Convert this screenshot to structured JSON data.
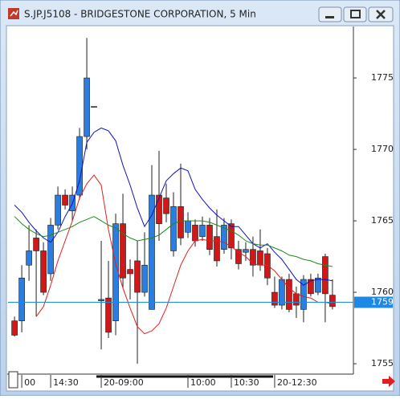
{
  "chart_data": {
    "type": "candlestick",
    "title": "S.JP.J5108 - BRIDGESTONE CORPORATION, 5 Min",
    "open": [
      1758,
      1758,
      1761.9,
      1763.8,
      1762.9,
      1761.3,
      1764.7,
      1766.8,
      1765.7,
      1766.8,
      1770.9,
      1773,
      1759.4,
      1759.6,
      1758,
      1764.8,
      1761.6,
      1762.2,
      1760,
      1758.8,
      1766.8,
      1766.6,
      1762.9,
      1766,
      1764.2,
      1764.7,
      1763.9,
      1764.7,
      1763.9,
      1763,
      1764.8,
      1763,
      1762.8,
      1763,
      1762.9,
      1762.7,
      1760,
      1759.1,
      1760.9,
      1759.9,
      1758.8,
      1760.9,
      1760,
      1762.5,
      1759.8
    ],
    "high": [
      1758.3,
      1761.9,
      1764.7,
      1764.4,
      1763.5,
      1765.2,
      1767.4,
      1767.2,
      1767.4,
      1771.5,
      1777.8,
      1773,
      1763.6,
      1762.2,
      1765.5,
      1766.9,
      1762.3,
      1763.6,
      1764.2,
      1768.9,
      1769.9,
      1767.6,
      1767,
      1769,
      1765.6,
      1765.1,
      1765.3,
      1765.2,
      1765.8,
      1765.2,
      1765.1,
      1763.6,
      1763.5,
      1763.9,
      1764.4,
      1763.1,
      1761.1,
      1761.1,
      1761.3,
      1760.4,
      1761.2,
      1761.3,
      1761.3,
      1762.7,
      1760.9
    ],
    "low": [
      1756.9,
      1757.2,
      1760.8,
      1758.3,
      1759.8,
      1760.8,
      1764.4,
      1765.8,
      1765,
      1766.5,
      1770,
      1773,
      1756,
      1756.8,
      1757,
      1760.3,
      1759.5,
      1755,
      1759.7,
      1758.8,
      1763.6,
      1764.9,
      1762.5,
      1763.3,
      1763.8,
      1763.2,
      1763.6,
      1762.6,
      1761.8,
      1762.7,
      1762.3,
      1761.6,
      1762.2,
      1761.1,
      1761.5,
      1760.5,
      1758.9,
      1758.8,
      1758.6,
      1758.2,
      1757.9,
      1759.7,
      1759.8,
      1757.9,
      1758.8
    ],
    "close": [
      1757,
      1761,
      1762.9,
      1762.9,
      1760,
      1764.7,
      1766.8,
      1766.1,
      1766.8,
      1770.9,
      1775,
      1773,
      1759.5,
      1757.2,
      1764.8,
      1761,
      1761.3,
      1760,
      1761.9,
      1766.8,
      1764.8,
      1765.5,
      1766,
      1763.8,
      1765,
      1763.6,
      1764.7,
      1763,
      1762.2,
      1764.7,
      1763.1,
      1762,
      1763,
      1761.9,
      1761.9,
      1761,
      1759.1,
      1760.9,
      1758.8,
      1759.1,
      1760.9,
      1759.9,
      1761,
      1759.9,
      1759
    ],
    "up_color": "#2a7de1",
    "down_color": "#d01818",
    "lines": [
      {
        "color": "#1010c8",
        "values": [
          1766.1,
          1765.6,
          1764.9,
          1764.3,
          1763.8,
          1763.5,
          1764.2,
          1765.3,
          1766.2,
          1767.8,
          1770.5,
          1771.2,
          1771.5,
          1771.3,
          1770.6,
          1768.9,
          1767.5,
          1765.9,
          1764.6,
          1765.4,
          1766.6,
          1767.8,
          1768.3,
          1768.7,
          1768.5,
          1767.2,
          1766.5,
          1765.9,
          1765.4,
          1765,
          1764.6,
          1764.6,
          1764,
          1763.4,
          1763.1,
          1763.4,
          1762.8,
          1762.3,
          1761.6,
          1760.9,
          1760.5,
          1760.8,
          1760.9,
          1760.9,
          1760.8
        ]
      },
      {
        "color": "#e02020",
        "values": [
          null,
          null,
          null,
          1758.3,
          1759,
          1760.5,
          1762.2,
          1763.6,
          1765,
          1766.6,
          1767.6,
          1768.2,
          1767.5,
          1764.4,
          1762,
          1760.3,
          1758.9,
          1757.6,
          1757.1,
          1757.3,
          1757.8,
          1758.9,
          1760.4,
          1761.9,
          1762.9,
          1763.6,
          1763.7,
          1763.6,
          1763.6,
          1763.5,
          1763.2,
          1762.8,
          1762.5,
          1762,
          1761.9,
          1761.9,
          1761.5,
          1760.9,
          1760.3,
          1759.9,
          1759.7,
          1759.6,
          1759.3,
          1759.3,
          1759.2
        ]
      },
      {
        "color": "#1e8a1e",
        "values": [
          1765.3,
          1764.8,
          1764.4,
          1764.1,
          1763.9,
          1764,
          1764.2,
          1764.4,
          1764.6,
          1764.9,
          1765.1,
          1765.3,
          1765,
          1764.7,
          1764.5,
          1764.1,
          1763.8,
          1763.6,
          1763.7,
          1763.8,
          1764,
          1764.4,
          1764.8,
          1765,
          1765,
          1765,
          1765,
          1764.9,
          1764.7,
          1764.5,
          1764.3,
          1764,
          1763.6,
          1763.4,
          1763.3,
          1763.3,
          1763.1,
          1762.9,
          1762.6,
          1762.5,
          1762.3,
          1762.2,
          1762,
          1761.9,
          1761.8
        ]
      }
    ],
    "current_price": {
      "value": 1759.3,
      "label": "1759"
    },
    "current_price_color": "#1e88e5",
    "ylim": [
      1754.33,
      1778.6
    ],
    "yticks": [
      1755,
      1760,
      1765,
      1770,
      1775
    ],
    "xlim": [
      -0.9,
      46.9
    ],
    "xticks": [
      {
        "value": 1,
        "label": "00"
      },
      {
        "value": 5,
        "label": "14:30"
      },
      {
        "value": 12,
        "label": "20-09:00"
      },
      {
        "value": 24,
        "label": "10:00"
      },
      {
        "value": 30,
        "label": "10:30"
      },
      {
        "value": 36,
        "label": "20-12:30"
      }
    ]
  }
}
